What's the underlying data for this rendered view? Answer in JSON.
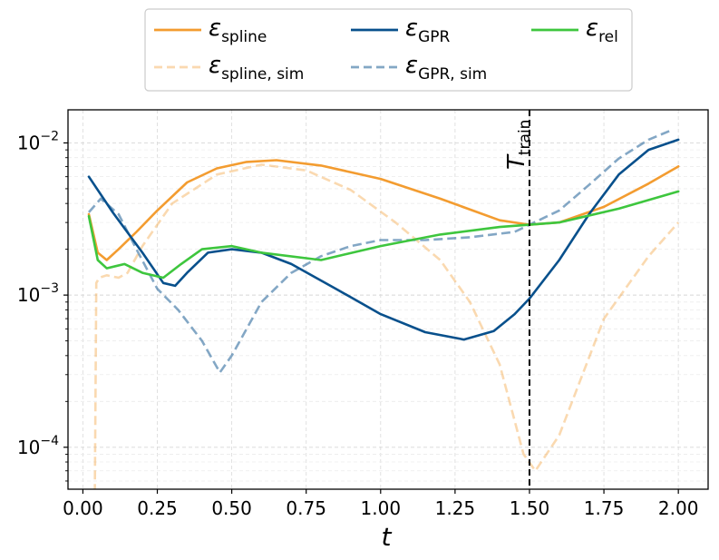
{
  "chart_data": {
    "type": "line",
    "title": "",
    "xlabel": "t",
    "ylabel": "",
    "yscale": "log",
    "xlim": [
      -0.05,
      2.1
    ],
    "ylim": [
      5.3e-05,
      0.0165
    ],
    "grid": true,
    "legend_position": "top-center",
    "x_ticks": [
      0.0,
      0.25,
      0.5,
      0.75,
      1.0,
      1.25,
      1.5,
      1.75,
      2.0
    ],
    "x_tick_labels": [
      "0.00",
      "0.25",
      "0.50",
      "0.75",
      "1.00",
      "1.25",
      "1.50",
      "1.75",
      "2.00"
    ],
    "y_ticks": [
      0.0001,
      0.001,
      0.01
    ],
    "y_tick_labels": [
      {
        "base": "10",
        "exp": "−4"
      },
      {
        "base": "10",
        "exp": "−3"
      },
      {
        "base": "10",
        "exp": "−2"
      }
    ],
    "vline": {
      "x": 1.5,
      "label_main": "T",
      "label_sub": "train",
      "color": "#000000",
      "dashed": true
    },
    "series": [
      {
        "name": "ε spline",
        "legend_main": "ε",
        "legend_sub": "spline",
        "color": "#f39c30",
        "dashed": false,
        "opacity": 1,
        "x": [
          0.02,
          0.05,
          0.08,
          0.12,
          0.18,
          0.25,
          0.35,
          0.45,
          0.55,
          0.65,
          0.8,
          1.0,
          1.2,
          1.4,
          1.5,
          1.6,
          1.75,
          1.9,
          2.0
        ],
        "y": [
          0.0034,
          0.0019,
          0.0017,
          0.002,
          0.0026,
          0.0036,
          0.0055,
          0.0068,
          0.0075,
          0.0077,
          0.0071,
          0.0058,
          0.0043,
          0.0031,
          0.0029,
          0.003,
          0.0038,
          0.0054,
          0.007
        ]
      },
      {
        "name": "ε spline, sim",
        "legend_main": "ε",
        "legend_sub": "spline, sim",
        "color": "#f39c30",
        "dashed": true,
        "opacity": 0.38,
        "x": [
          0.04,
          0.045,
          0.055,
          0.08,
          0.12,
          0.15,
          0.2,
          0.3,
          0.45,
          0.6,
          0.75,
          0.9,
          1.05,
          1.2,
          1.3,
          1.4,
          1.48,
          1.52,
          1.6,
          1.75,
          1.9,
          2.0
        ],
        "y": [
          5e-05,
          0.0012,
          0.0013,
          0.00135,
          0.0013,
          0.0014,
          0.0021,
          0.004,
          0.0062,
          0.0072,
          0.0066,
          0.0049,
          0.003,
          0.0017,
          0.0009,
          0.00035,
          9e-05,
          7e-05,
          0.00012,
          0.0007,
          0.0018,
          0.003
        ]
      },
      {
        "name": "ε GPR",
        "legend_main": "ε",
        "legend_sub": "GPR",
        "color": "#08508c",
        "dashed": false,
        "opacity": 1,
        "x": [
          0.02,
          0.1,
          0.2,
          0.27,
          0.31,
          0.35,
          0.42,
          0.5,
          0.6,
          0.7,
          0.85,
          1.0,
          1.15,
          1.28,
          1.38,
          1.45,
          1.5,
          1.6,
          1.7,
          1.8,
          1.9,
          2.0
        ],
        "y": [
          0.006,
          0.0035,
          0.0019,
          0.0012,
          0.00115,
          0.0014,
          0.0019,
          0.002,
          0.0019,
          0.0016,
          0.0011,
          0.00075,
          0.00057,
          0.00051,
          0.00058,
          0.00075,
          0.00095,
          0.0017,
          0.0034,
          0.0062,
          0.009,
          0.0105
        ]
      },
      {
        "name": "ε GPR, sim",
        "legend_main": "ε",
        "legend_sub": "GPR, sim",
        "color": "#08508c",
        "dashed": true,
        "opacity": 0.5,
        "x": [
          0.02,
          0.06,
          0.12,
          0.18,
          0.25,
          0.32,
          0.4,
          0.46,
          0.5,
          0.6,
          0.7,
          0.8,
          0.9,
          1.0,
          1.15,
          1.3,
          1.45,
          1.5,
          1.6,
          1.7,
          1.8,
          1.9,
          1.98
        ],
        "y": [
          0.0035,
          0.0043,
          0.0034,
          0.002,
          0.0011,
          0.0008,
          0.0005,
          0.00031,
          0.0004,
          0.0009,
          0.0014,
          0.0018,
          0.0021,
          0.0023,
          0.0023,
          0.0024,
          0.0026,
          0.0029,
          0.0036,
          0.0053,
          0.0079,
          0.0105,
          0.0122
        ]
      },
      {
        "name": "ε rel",
        "legend_main": "ε",
        "legend_sub": "rel",
        "color": "#3ec63e",
        "dashed": false,
        "opacity": 1,
        "x": [
          0.02,
          0.05,
          0.08,
          0.14,
          0.2,
          0.27,
          0.33,
          0.4,
          0.5,
          0.6,
          0.8,
          1.0,
          1.2,
          1.4,
          1.5,
          1.6,
          1.8,
          2.0
        ],
        "y": [
          0.0033,
          0.0017,
          0.0015,
          0.0016,
          0.0014,
          0.0013,
          0.0016,
          0.002,
          0.0021,
          0.0019,
          0.0017,
          0.0021,
          0.0025,
          0.0028,
          0.0029,
          0.003,
          0.0037,
          0.0048
        ]
      }
    ]
  }
}
